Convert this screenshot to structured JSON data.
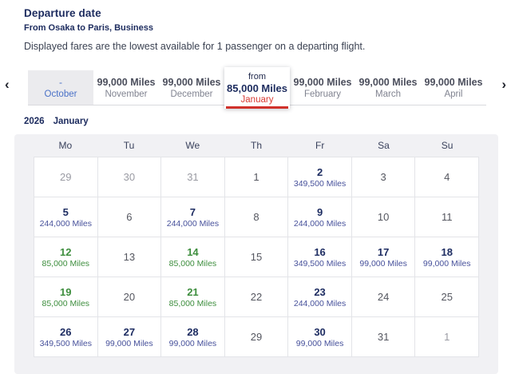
{
  "header": {
    "title": "Departure date",
    "subtitle": "From Osaka to Paris, Business",
    "note": "Displayed fares are the lowest available for 1 passenger on a departing flight."
  },
  "colors": {
    "navy": "#1c2b5e",
    "fare_navy": "#47519b",
    "green": "#3e8e3e",
    "red": "#d93a32",
    "past_blue": "#4a71c7",
    "panel_gray": "#f1f1f4"
  },
  "month_strip": {
    "prev_icon": "‹",
    "next_icon": "›",
    "tabs": [
      {
        "label": "October",
        "miles": "-",
        "state": "past"
      },
      {
        "label": "November",
        "miles": "99,000 Miles",
        "state": "normal"
      },
      {
        "label": "December",
        "miles": "99,000 Miles",
        "state": "normal"
      },
      {
        "label": "January",
        "miles": "85,000 Miles",
        "prefix": "from",
        "state": "selected"
      },
      {
        "label": "February",
        "miles": "99,000 Miles",
        "state": "normal"
      },
      {
        "label": "March",
        "miles": "99,000 Miles",
        "state": "normal"
      },
      {
        "label": "April",
        "miles": "99,000 Miles",
        "state": "normal"
      }
    ]
  },
  "period": {
    "year": "2026",
    "month": "January"
  },
  "calendar": {
    "weekdays": [
      "Mo",
      "Tu",
      "We",
      "Th",
      "Fr",
      "Sa",
      "Su"
    ],
    "cells": [
      {
        "day": "29",
        "state": "outside"
      },
      {
        "day": "30",
        "state": "outside"
      },
      {
        "day": "31",
        "state": "outside"
      },
      {
        "day": "1",
        "state": "default"
      },
      {
        "day": "2",
        "state": "fare",
        "miles": "349,500 Miles"
      },
      {
        "day": "3",
        "state": "default"
      },
      {
        "day": "4",
        "state": "default"
      },
      {
        "day": "5",
        "state": "fare",
        "miles": "244,000 Miles"
      },
      {
        "day": "6",
        "state": "default"
      },
      {
        "day": "7",
        "state": "fare",
        "miles": "244,000 Miles"
      },
      {
        "day": "8",
        "state": "default"
      },
      {
        "day": "9",
        "state": "fare",
        "miles": "244,000 Miles"
      },
      {
        "day": "10",
        "state": "default"
      },
      {
        "day": "11",
        "state": "default"
      },
      {
        "day": "12",
        "state": "fare-green",
        "miles": "85,000 Miles"
      },
      {
        "day": "13",
        "state": "default"
      },
      {
        "day": "14",
        "state": "fare-green",
        "miles": "85,000 Miles"
      },
      {
        "day": "15",
        "state": "default"
      },
      {
        "day": "16",
        "state": "fare",
        "miles": "349,500 Miles"
      },
      {
        "day": "17",
        "state": "fare",
        "miles": "99,000 Miles"
      },
      {
        "day": "18",
        "state": "fare",
        "miles": "99,000 Miles"
      },
      {
        "day": "19",
        "state": "fare-green",
        "miles": "85,000 Miles"
      },
      {
        "day": "20",
        "state": "default"
      },
      {
        "day": "21",
        "state": "fare-green",
        "miles": "85,000 Miles"
      },
      {
        "day": "22",
        "state": "default"
      },
      {
        "day": "23",
        "state": "fare",
        "miles": "244,000 Miles"
      },
      {
        "day": "24",
        "state": "default"
      },
      {
        "day": "25",
        "state": "default"
      },
      {
        "day": "26",
        "state": "fare",
        "miles": "349,500 Miles"
      },
      {
        "day": "27",
        "state": "fare",
        "miles": "99,000 Miles"
      },
      {
        "day": "28",
        "state": "fare",
        "miles": "99,000 Miles"
      },
      {
        "day": "29",
        "state": "default"
      },
      {
        "day": "30",
        "state": "fare",
        "miles": "99,000 Miles"
      },
      {
        "day": "31",
        "state": "default"
      },
      {
        "day": "1",
        "state": "outside"
      }
    ]
  }
}
